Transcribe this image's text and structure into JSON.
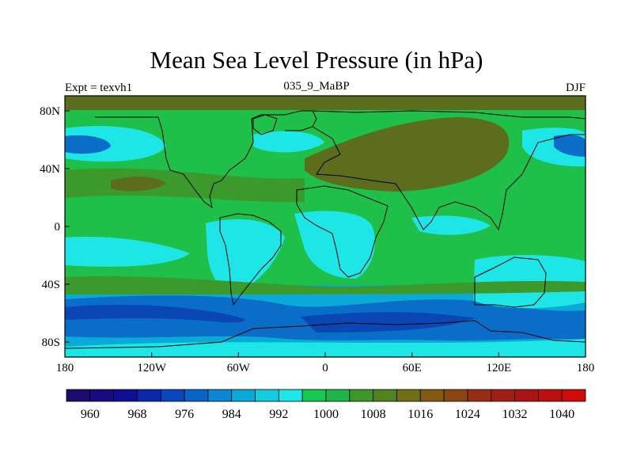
{
  "title": "Mean Sea Level Pressure (in hPa)",
  "left_label": "Expt = texvh1",
  "center_label": "035_9_MaBP",
  "right_label": "DJF",
  "x_ticks": [
    "180",
    "120W",
    "60W",
    "0",
    "60E",
    "120E",
    "180"
  ],
  "y_ticks": [
    "80N",
    "40N",
    "0",
    "40S",
    "80S"
  ],
  "colorbar": {
    "labels": [
      "960",
      "968",
      "976",
      "984",
      "992",
      "1000",
      "1008",
      "1016",
      "1024",
      "1032",
      "1040"
    ],
    "colors": [
      "#1c0a6e",
      "#170a82",
      "#0f0f96",
      "#0a28aa",
      "#0a46be",
      "#0a64c8",
      "#0a86d2",
      "#0aaad8",
      "#14cce0",
      "#1ee6e6",
      "#14c850",
      "#1eb44b",
      "#3c9628",
      "#50821e",
      "#6e6e14",
      "#825a14",
      "#8c4614",
      "#962d14",
      "#a01e14",
      "#aa1414",
      "#be0f0f",
      "#d20a0a"
    ]
  },
  "map_colors": {
    "land_outline": "#000000",
    "ocean_green": "#1ec04a",
    "high_dark": "#5c6e1e",
    "mid_green": "#3c9a2c",
    "cyan": "#1ee6e6",
    "light_blue": "#0aaad8",
    "blue": "#0a6ec8",
    "dark_blue": "#0a46b4"
  }
}
